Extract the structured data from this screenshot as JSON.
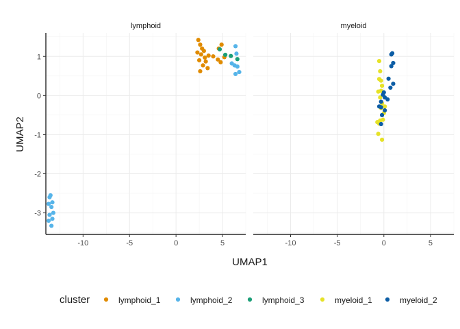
{
  "chart_data": {
    "type": "scatter",
    "xlabel": "UMAP1",
    "ylabel": "UMAP2",
    "xlim": [
      -14,
      7.5
    ],
    "ylim": [
      -3.55,
      1.6
    ],
    "x_ticks": [
      -10,
      -5,
      0,
      5
    ],
    "y_ticks": [
      1,
      0,
      -1,
      -2,
      -3
    ],
    "grid": true,
    "legend_position": "bottom",
    "legend_title": "cluster",
    "facets": [
      "lymphoid",
      "myeloid"
    ],
    "series": [
      {
        "name": "lymphoid_1",
        "color": "#E08B00",
        "facet": "lymphoid",
        "points": [
          [
            2.4,
            1.42
          ],
          [
            2.6,
            1.3
          ],
          [
            2.8,
            1.2
          ],
          [
            3.0,
            1.14
          ],
          [
            2.3,
            1.1
          ],
          [
            2.7,
            1.05
          ],
          [
            3.5,
            1.02
          ],
          [
            3.1,
            0.97
          ],
          [
            4.0,
            1.0
          ],
          [
            4.5,
            0.92
          ],
          [
            2.5,
            0.9
          ],
          [
            3.2,
            0.87
          ],
          [
            4.8,
            0.85
          ],
          [
            2.9,
            0.77
          ],
          [
            3.4,
            0.7
          ],
          [
            2.6,
            0.62
          ],
          [
            4.9,
            1.3
          ],
          [
            5.2,
            0.98
          ],
          [
            4.6,
            1.2
          ]
        ]
      },
      {
        "name": "lymphoid_2",
        "color": "#56B4E9",
        "facet": "lymphoid",
        "points": [
          [
            6.4,
            1.26
          ],
          [
            6.5,
            1.07
          ],
          [
            6.0,
            0.82
          ],
          [
            6.3,
            0.77
          ],
          [
            6.6,
            0.74
          ],
          [
            6.8,
            0.6
          ],
          [
            6.4,
            0.55
          ],
          [
            -13.5,
            -2.55
          ],
          [
            -13.6,
            -2.6
          ],
          [
            -13.3,
            -2.73
          ],
          [
            -13.7,
            -2.77
          ],
          [
            -13.4,
            -2.85
          ],
          [
            -13.2,
            -3.0
          ],
          [
            -13.6,
            -3.05
          ],
          [
            -13.3,
            -3.15
          ],
          [
            -13.7,
            -3.2
          ],
          [
            -13.4,
            -3.33
          ]
        ]
      },
      {
        "name": "lymphoid_3",
        "color": "#1B9E77",
        "facet": "lymphoid",
        "points": [
          [
            4.7,
            1.18
          ],
          [
            5.3,
            1.04
          ],
          [
            5.9,
            1.01
          ],
          [
            6.6,
            0.93
          ]
        ]
      },
      {
        "name": "myeloid_1",
        "color": "#E6E227",
        "facet": "myeloid",
        "points": [
          [
            -0.5,
            0.88
          ],
          [
            -0.4,
            0.62
          ],
          [
            -0.5,
            0.42
          ],
          [
            -0.3,
            0.38
          ],
          [
            -0.2,
            0.25
          ],
          [
            -0.6,
            0.1
          ],
          [
            -0.3,
            0.12
          ],
          [
            -0.1,
            0.08
          ],
          [
            -0.4,
            -0.05
          ],
          [
            -0.2,
            -0.2
          ],
          [
            0.1,
            -0.28
          ],
          [
            -0.3,
            -0.32
          ],
          [
            0.0,
            -0.45
          ],
          [
            -0.1,
            -0.62
          ],
          [
            -0.4,
            -0.64
          ],
          [
            -0.7,
            -0.68
          ],
          [
            -0.5,
            -0.72
          ],
          [
            -0.6,
            -0.98
          ],
          [
            -0.2,
            -1.13
          ]
        ]
      },
      {
        "name": "myeloid_2",
        "color": "#0C5DA5",
        "facet": "myeloid",
        "points": [
          [
            0.9,
            1.08
          ],
          [
            0.8,
            1.05
          ],
          [
            1.0,
            0.83
          ],
          [
            0.8,
            0.75
          ],
          [
            0.5,
            0.43
          ],
          [
            1.0,
            0.3
          ],
          [
            0.7,
            0.2
          ],
          [
            0.0,
            0.08
          ],
          [
            -0.1,
            0.02
          ],
          [
            0.1,
            -0.05
          ],
          [
            0.4,
            -0.1
          ],
          [
            -0.3,
            -0.16
          ],
          [
            -0.5,
            -0.28
          ],
          [
            -0.3,
            -0.3
          ],
          [
            0.1,
            -0.38
          ],
          [
            -0.2,
            -0.5
          ],
          [
            -0.3,
            -0.73
          ]
        ]
      }
    ]
  }
}
